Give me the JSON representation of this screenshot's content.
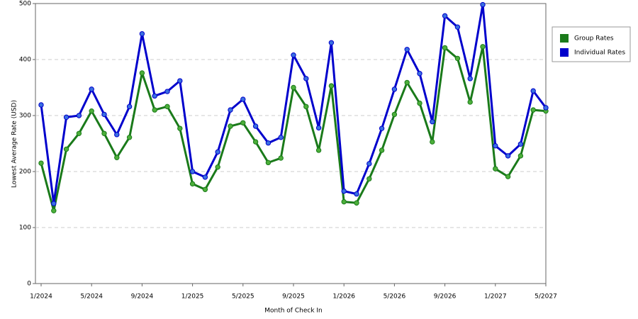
{
  "chart_data": {
    "type": "line",
    "x_label": "Month of Check In",
    "y_label": "Lowest Average Rate (USD)",
    "categories": [
      "1/2024",
      null,
      null,
      null,
      "5/2024",
      null,
      null,
      null,
      "9/2024",
      null,
      null,
      null,
      "1/2025",
      null,
      null,
      null,
      "5/2025",
      null,
      null,
      null,
      "9/2025",
      null,
      null,
      null,
      "1/2026",
      null,
      null,
      null,
      "5/2026",
      null,
      null,
      null,
      "9/2026",
      null,
      null,
      null,
      "1/2027",
      null,
      null,
      null,
      "5/2027"
    ],
    "series": [
      {
        "name": "Group Rates",
        "color": "#1a7a1a",
        "marker": "#4caf3a",
        "values": [
          215,
          130,
          240,
          268,
          308,
          268,
          225,
          261,
          376,
          310,
          316,
          277,
          178,
          168,
          208,
          281,
          287,
          253,
          216,
          224,
          350,
          316,
          238,
          353,
          146,
          144,
          187,
          238,
          302,
          359,
          322,
          253,
          421,
          402,
          324,
          423,
          205,
          191,
          228,
          310,
          308
        ]
      },
      {
        "name": "Individual Rates",
        "color": "#0000cc",
        "marker": "#3a6fe0",
        "values": [
          319,
          143,
          297,
          300,
          347,
          302,
          266,
          316,
          446,
          335,
          343,
          362,
          200,
          190,
          235,
          310,
          329,
          281,
          251,
          261,
          408,
          366,
          278,
          430,
          165,
          160,
          214,
          277,
          347,
          418,
          375,
          289,
          478,
          458,
          366,
          498,
          246,
          228,
          249,
          344,
          314
        ]
      }
    ],
    "ylim": [
      0,
      500
    ],
    "yticks": [
      0,
      100,
      200,
      300,
      400,
      500
    ],
    "grid": true
  }
}
